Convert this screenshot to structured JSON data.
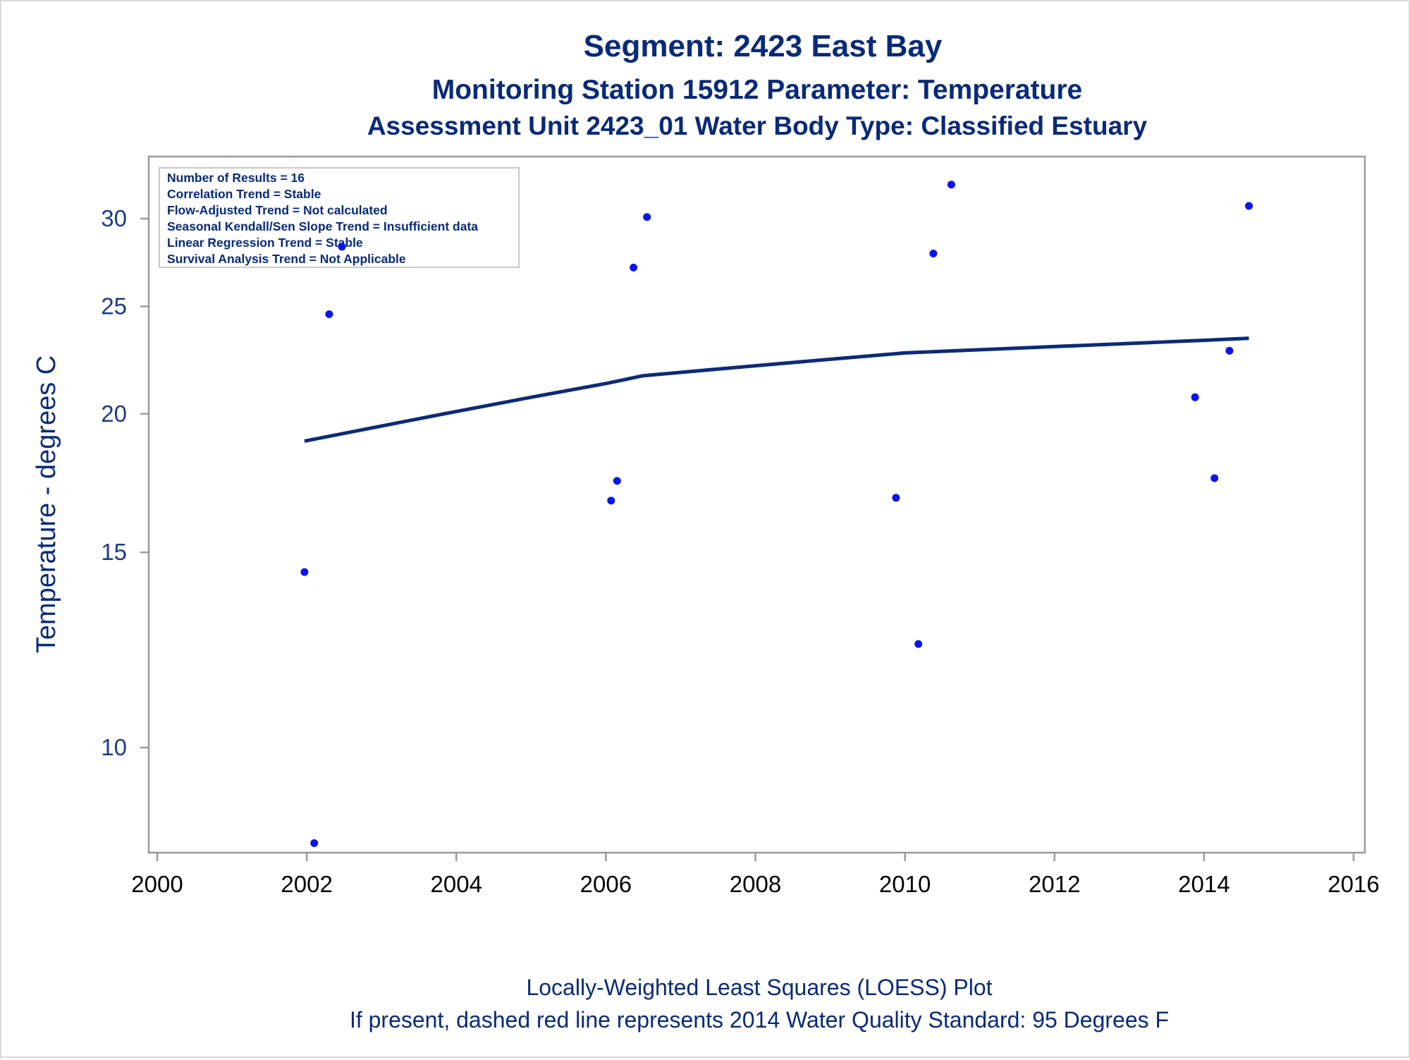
{
  "titles": {
    "line1": "Segment: 2423  East Bay",
    "line2": "Monitoring Station 15912 Parameter: Temperature",
    "line3": "Assessment Unit 2423_01   Water Body Type: Classified Estuary"
  },
  "stats_box": [
    "Number of Results = 16",
    "Correlation Trend = Stable",
    "Flow-Adjusted Trend = Not calculated",
    "Seasonal Kendall/Sen Slope Trend = Insufficient data",
    "Linear Regression Trend = Stable",
    "Survival Analysis Trend = Not Applicable"
  ],
  "footnotes": {
    "line1": "Locally-Weighted Least Squares (LOESS) Plot",
    "line2": "If present, dashed red line represents 2014 Water Quality Standard: 95   Degrees F"
  },
  "colors": {
    "points": "#0a14f0",
    "loess_line": "#0c2a78",
    "axis": "#9a9a9a",
    "text": "#082a78"
  },
  "chart_data": {
    "type": "scatter",
    "title": "Segment: 2423  East Bay",
    "xlabel": "",
    "ylabel": "Temperature - degrees C",
    "xlim": [
      2000,
      2016
    ],
    "ylim": [
      8,
      32
    ],
    "y_scale": "log",
    "grid": false,
    "x_ticks": [
      2000,
      2002,
      2004,
      2006,
      2008,
      2010,
      2012,
      2014,
      2016
    ],
    "y_ticks": [
      10,
      15,
      20,
      25,
      30
    ],
    "series": [
      {
        "kind": "scatter",
        "points": [
          {
            "x": 2001.97,
            "y": 14.4
          },
          {
            "x": 2002.1,
            "y": 8.2
          },
          {
            "x": 2002.3,
            "y": 24.6
          },
          {
            "x": 2002.47,
            "y": 28.3
          },
          {
            "x": 2006.07,
            "y": 16.7
          },
          {
            "x": 2006.15,
            "y": 17.4
          },
          {
            "x": 2006.37,
            "y": 27.1
          },
          {
            "x": 2006.55,
            "y": 30.1
          },
          {
            "x": 2009.88,
            "y": 16.8
          },
          {
            "x": 2010.18,
            "y": 12.4
          },
          {
            "x": 2010.38,
            "y": 27.9
          },
          {
            "x": 2010.62,
            "y": 32.2
          },
          {
            "x": 2013.88,
            "y": 20.7
          },
          {
            "x": 2014.14,
            "y": 17.5
          },
          {
            "x": 2014.34,
            "y": 22.8
          },
          {
            "x": 2014.6,
            "y": 30.8
          }
        ]
      },
      {
        "kind": "line",
        "points": [
          {
            "x": 2001.97,
            "y": 18.9
          },
          {
            "x": 2003.0,
            "y": 19.5
          },
          {
            "x": 2004.0,
            "y": 20.1
          },
          {
            "x": 2005.0,
            "y": 20.7
          },
          {
            "x": 2006.0,
            "y": 21.3
          },
          {
            "x": 2006.5,
            "y": 21.65
          },
          {
            "x": 2007.0,
            "y": 21.8
          },
          {
            "x": 2008.0,
            "y": 22.1
          },
          {
            "x": 2009.0,
            "y": 22.4
          },
          {
            "x": 2010.0,
            "y": 22.7
          },
          {
            "x": 2011.0,
            "y": 22.85
          },
          {
            "x": 2012.0,
            "y": 23.0
          },
          {
            "x": 2013.0,
            "y": 23.15
          },
          {
            "x": 2014.0,
            "y": 23.3
          },
          {
            "x": 2014.6,
            "y": 23.4
          }
        ]
      }
    ]
  }
}
